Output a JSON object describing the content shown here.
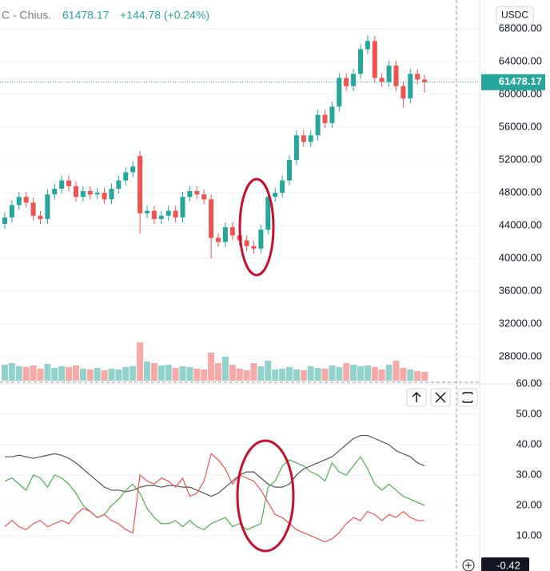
{
  "header": {
    "symbol": "C - Chius.",
    "price": "61478.17",
    "change": "+144.78 (+0.24%)"
  },
  "currency": "USDC",
  "footer": {
    "value_label": "-0.42"
  },
  "chart_data": [
    {
      "type": "candlestick",
      "up_color": "#26a69a",
      "down_color": "#ef5350",
      "open": [
        44200,
        45000,
        46500,
        47500,
        46800,
        45200,
        44800,
        47800,
        48500,
        49500,
        48800,
        47500,
        48200,
        47800,
        48000,
        47200,
        48500,
        49500,
        50500,
        52500,
        45500,
        45800,
        44800,
        45200,
        45800,
        45000,
        47500,
        48200,
        47800,
        47200,
        42500,
        42000,
        43800,
        42800,
        42200,
        41500,
        41200,
        43500,
        47500,
        48000,
        49500,
        52000,
        55000,
        54200,
        55000,
        57500,
        56500,
        58500,
        62000,
        61000,
        62500,
        65500,
        66500,
        62000,
        61500,
        63500,
        61000,
        59500,
        62500,
        61800
      ],
      "high": [
        45600,
        47100,
        48100,
        48100,
        47400,
        45800,
        48400,
        49100,
        50100,
        50100,
        49400,
        48800,
        48800,
        48600,
        48600,
        49100,
        50100,
        51100,
        51800,
        53100,
        46400,
        46400,
        45800,
        46400,
        46400,
        48100,
        48800,
        48800,
        48400,
        47800,
        43100,
        44400,
        44400,
        43400,
        42800,
        42100,
        44100,
        48100,
        48600,
        50100,
        52600,
        55600,
        55600,
        55600,
        58100,
        58100,
        59100,
        62600,
        62600,
        63100,
        66100,
        67200,
        67100,
        62600,
        64100,
        64100,
        61600,
        63100,
        63100,
        62400
      ],
      "low": [
        43600,
        44400,
        45900,
        46200,
        44600,
        44200,
        44200,
        47200,
        47900,
        48200,
        46900,
        46900,
        47200,
        47200,
        46600,
        46600,
        47900,
        48900,
        49900,
        43000,
        44900,
        44200,
        44200,
        44600,
        44400,
        44400,
        46900,
        47200,
        46600,
        40000,
        41400,
        41400,
        42200,
        41600,
        40900,
        40600,
        40600,
        42900,
        46900,
        47400,
        48900,
        51400,
        53600,
        53600,
        54400,
        55900,
        55900,
        57900,
        60400,
        60400,
        61900,
        64900,
        61400,
        60900,
        60900,
        60400,
        58400,
        58900,
        61200,
        60200
      ],
      "close": [
        45000,
        46500,
        47500,
        46800,
        45200,
        44800,
        47800,
        48500,
        49500,
        48800,
        47500,
        48200,
        47800,
        48000,
        47200,
        48500,
        49500,
        50500,
        51200,
        45500,
        45800,
        44800,
        45200,
        45800,
        45000,
        47500,
        48200,
        47800,
        47200,
        42500,
        42000,
        43800,
        42800,
        42200,
        41500,
        41200,
        43500,
        47500,
        48000,
        49500,
        52000,
        55000,
        54200,
        55000,
        57500,
        56500,
        58500,
        62000,
        61000,
        62500,
        65500,
        66500,
        62000,
        61500,
        63500,
        61000,
        59500,
        62500,
        61800,
        61478.17
      ],
      "volume": [
        20,
        22,
        18,
        17,
        19,
        15,
        21,
        16,
        18,
        17,
        19,
        15,
        14,
        16,
        13,
        15,
        14,
        17,
        18,
        48,
        24,
        22,
        19,
        20,
        16,
        18,
        17,
        15,
        14,
        35,
        22,
        30,
        20,
        15,
        13,
        22,
        18,
        25,
        14,
        15,
        17,
        14,
        13,
        18,
        16,
        15,
        19,
        17,
        22,
        20,
        18,
        19,
        17,
        14,
        20,
        25,
        16,
        14,
        12,
        11
      ],
      "ylim": [
        24900,
        71500
      ],
      "yticks": [
        {
          "value": 28000,
          "label": "28000.00"
        },
        {
          "value": 32000,
          "label": "32000.00"
        },
        {
          "value": 36000,
          "label": "36000.00"
        },
        {
          "value": 40000,
          "label": "40000.00"
        },
        {
          "value": 44000,
          "label": "44000.00"
        },
        {
          "value": 48000,
          "label": "48000.00"
        },
        {
          "value": 52000,
          "label": "52000.00"
        },
        {
          "value": 56000,
          "label": "56000.00"
        },
        {
          "value": 60000,
          "label": "60000.00"
        },
        {
          "value": 64000,
          "label": "64000.00"
        },
        {
          "value": 68000,
          "label": "68000.00"
        }
      ],
      "grid": true
    },
    {
      "type": "line",
      "series": [
        {
          "color": "#555555",
          "values": [
            36,
            36,
            36.5,
            36,
            35.5,
            36,
            36.5,
            37,
            36.5,
            35.5,
            34,
            32,
            30,
            28,
            26,
            25,
            25,
            24.5,
            25,
            26,
            26.5,
            26.5,
            26,
            26.5,
            26.5,
            26,
            26,
            25,
            24,
            23,
            24,
            26,
            28,
            30,
            31,
            31,
            29,
            27,
            26,
            26,
            27,
            30,
            32,
            33,
            34,
            35,
            36,
            38,
            40,
            42,
            43,
            43,
            42,
            41,
            40,
            38,
            37,
            36,
            34,
            33
          ]
        },
        {
          "color": "#4caf50",
          "values": [
            28,
            29,
            27,
            25,
            30,
            29,
            26,
            30,
            29,
            27,
            24,
            20,
            18,
            16,
            17,
            20,
            22,
            25,
            27,
            24,
            19,
            16,
            14,
            14,
            15,
            13,
            15,
            13,
            12,
            14,
            15,
            16,
            13,
            14,
            12,
            13,
            14,
            26,
            28,
            33,
            35,
            34,
            33,
            31,
            30,
            28,
            34,
            31,
            30,
            33,
            36,
            32,
            27,
            25,
            27,
            25,
            23,
            22,
            21,
            20
          ]
        },
        {
          "color": "#ef5350",
          "values": [
            13,
            15,
            13,
            12,
            14,
            15,
            13,
            14,
            15,
            14,
            17,
            19,
            18,
            16,
            17,
            15,
            14,
            12,
            11,
            30,
            28,
            27,
            29,
            28,
            26,
            29,
            23,
            24,
            28,
            37,
            35,
            32,
            27,
            30,
            29,
            28,
            25,
            21,
            17,
            16,
            14,
            12,
            11,
            10,
            9,
            8,
            9,
            11,
            14,
            16,
            15,
            18,
            17,
            15,
            17,
            16,
            18,
            16,
            15,
            15
          ]
        }
      ],
      "ylim": [
        -1.6,
        60
      ],
      "yticks": [
        {
          "value": 10,
          "label": "10.00"
        },
        {
          "value": 20,
          "label": "20.00"
        },
        {
          "value": 30,
          "label": "30.00"
        },
        {
          "value": 40,
          "label": "40.00"
        },
        {
          "value": 50,
          "label": "50.00"
        },
        {
          "value": 60,
          "label": "60.00"
        }
      ],
      "grid": true
    }
  ]
}
